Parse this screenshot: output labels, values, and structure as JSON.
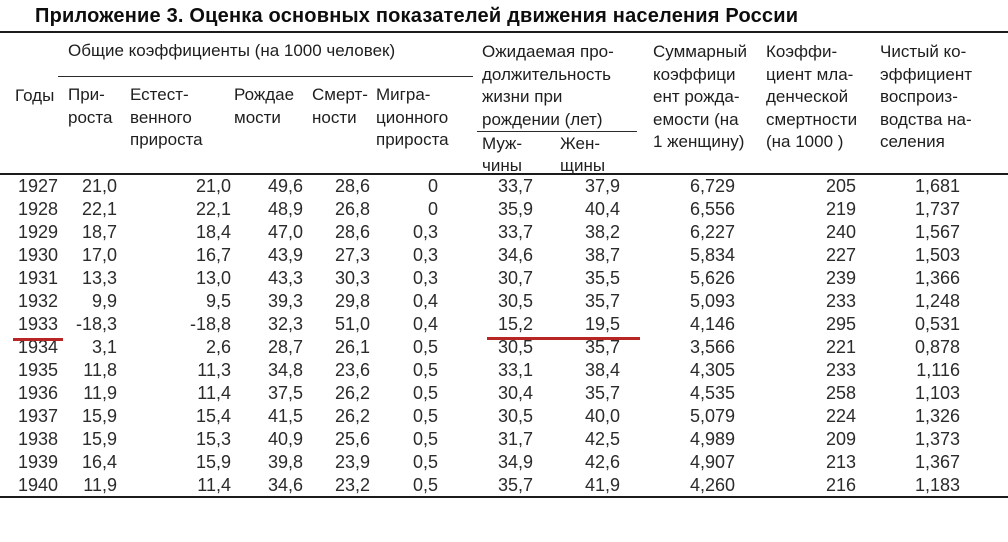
{
  "page": {
    "title": "Приложение 3. Оценка основных показателей движения населения России"
  },
  "table": {
    "groups": {
      "common_coefficients": "Общие коэффициенты (на 1000 человек)",
      "life_expectancy_top": "Ожидаемая про-\nдолжительность\nжизни при",
      "life_expectancy_bottom": "рождении (лет)"
    },
    "headers": {
      "years": "Годы",
      "growth": "При-\nроста",
      "natural_growth": "Естест-\nвенного\nприроста",
      "birth_rate": "Рождае\nмости",
      "death_rate": "Смерт-\nности",
      "migration_growth": "Мигра-\nционного\nприроста",
      "men": "Муж-\nчины",
      "women": "Жен-\nщины",
      "total_fertility": "Суммарный\nкоэффици\nент рожда-\nемости (на\n1 женщину)",
      "infant_mortality": "Коэффи-\nциент мла-\nденческой\nсмертности\n(на 1000 )",
      "net_reproduction": "Чистый ко-\nэффициент\nвоспроиз-\nводства на-\nселения"
    },
    "rows": [
      [
        "1927",
        "21,0",
        "21,0",
        "49,6",
        "28,6",
        "0",
        "33,7",
        "37,9",
        "6,729",
        "205",
        "1,681"
      ],
      [
        "1928",
        "22,1",
        "22,1",
        "48,9",
        "26,8",
        "0",
        "35,9",
        "40,4",
        "6,556",
        "219",
        "1,737"
      ],
      [
        "1929",
        "18,7",
        "18,4",
        "47,0",
        "28,6",
        "0,3",
        "33,7",
        "38,2",
        "6,227",
        "240",
        "1,567"
      ],
      [
        "1930",
        "17,0",
        "16,7",
        "43,9",
        "27,3",
        "0,3",
        "34,6",
        "38,7",
        "5,834",
        "227",
        "1,503"
      ],
      [
        "1931",
        "13,3",
        "13,0",
        "43,3",
        "30,3",
        "0,3",
        "30,7",
        "35,5",
        "5,626",
        "239",
        "1,366"
      ],
      [
        "1932",
        "9,9",
        "9,5",
        "39,3",
        "29,8",
        "0,4",
        "30,5",
        "35,7",
        "5,093",
        "233",
        "1,248"
      ],
      [
        "1933",
        "-18,3",
        "-18,8",
        "32,3",
        "51,0",
        "0,4",
        "15,2",
        "19,5",
        "4,146",
        "295",
        "0,531"
      ],
      [
        "1934",
        "3,1",
        "2,6",
        "28,7",
        "26,1",
        "0,5",
        "30,5",
        "35,7",
        "3,566",
        "221",
        "0,878"
      ],
      [
        "1935",
        "11,8",
        "11,3",
        "34,8",
        "23,6",
        "0,5",
        "33,1",
        "38,4",
        "4,305",
        "233",
        "1,116"
      ],
      [
        "1936",
        "11,9",
        "11,4",
        "37,5",
        "26,2",
        "0,5",
        "30,4",
        "35,7",
        "4,535",
        "258",
        "1,103"
      ],
      [
        "1937",
        "15,9",
        "15,4",
        "41,5",
        "26,2",
        "0,5",
        "30,5",
        "40,0",
        "5,079",
        "224",
        "1,326"
      ],
      [
        "1938",
        "15,9",
        "15,3",
        "40,9",
        "25,6",
        "0,5",
        "31,7",
        "42,5",
        "4,989",
        "209",
        "1,373"
      ],
      [
        "1939",
        "16,4",
        "15,9",
        "39,8",
        "23,9",
        "0,5",
        "34,9",
        "42,6",
        "4,907",
        "213",
        "1,367"
      ],
      [
        "1940",
        "11,9",
        "11,4",
        "34,6",
        "23,2",
        "0,5",
        "35,7",
        "41,9",
        "4,260",
        "216",
        "1,183"
      ]
    ]
  },
  "annotations": {
    "underline_color": "#b72525",
    "underlined_year": "1933",
    "underlined_life_values": [
      "15,2",
      "19,5"
    ]
  }
}
